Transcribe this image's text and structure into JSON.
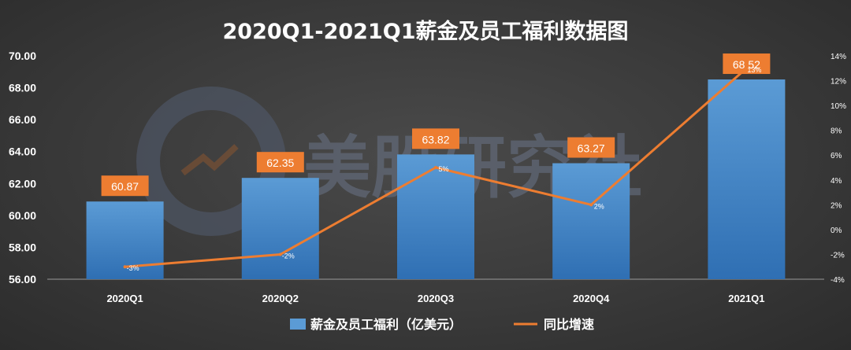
{
  "watermark": {
    "text": "美股研究社"
  },
  "colors": {
    "bar": "#5b9bd5",
    "line": "#ed7d31",
    "label_bg": "#ed7d31",
    "text": "#ffffff"
  },
  "chart_data": {
    "type": "bar",
    "title": "2020Q1-2021Q1薪金及员工福利数据图",
    "categories": [
      "2020Q1",
      "2020Q2",
      "2020Q3",
      "2020Q4",
      "2021Q1"
    ],
    "series": [
      {
        "name": "薪金及员工福利（亿美元）",
        "type": "bar",
        "axis": "left",
        "values": [
          60.87,
          62.35,
          63.82,
          63.27,
          68.52
        ],
        "labels": [
          "60.87",
          "62.35",
          "63.82",
          "63.27",
          "68.52"
        ]
      },
      {
        "name": "同比增速",
        "type": "line",
        "axis": "right",
        "values": [
          -3,
          -2,
          5,
          2,
          13
        ],
        "labels": [
          "-3%",
          "-2%",
          "5%",
          "2%",
          "13%"
        ]
      }
    ],
    "left_axis": {
      "min": 56,
      "max": 70,
      "step": 2,
      "ticks": [
        "56.00",
        "58.00",
        "60.00",
        "62.00",
        "64.00",
        "66.00",
        "68.00",
        "70.00"
      ]
    },
    "right_axis": {
      "min": -4,
      "max": 14,
      "step": 2,
      "unit": "%",
      "ticks": [
        "-4%",
        "-2%",
        "0%",
        "2%",
        "4%",
        "6%",
        "8%",
        "10%",
        "12%",
        "14%"
      ]
    },
    "legend": {
      "position": "bottom",
      "items": [
        "薪金及员工福利（亿美元）",
        "同比增速"
      ]
    },
    "grid": false
  }
}
